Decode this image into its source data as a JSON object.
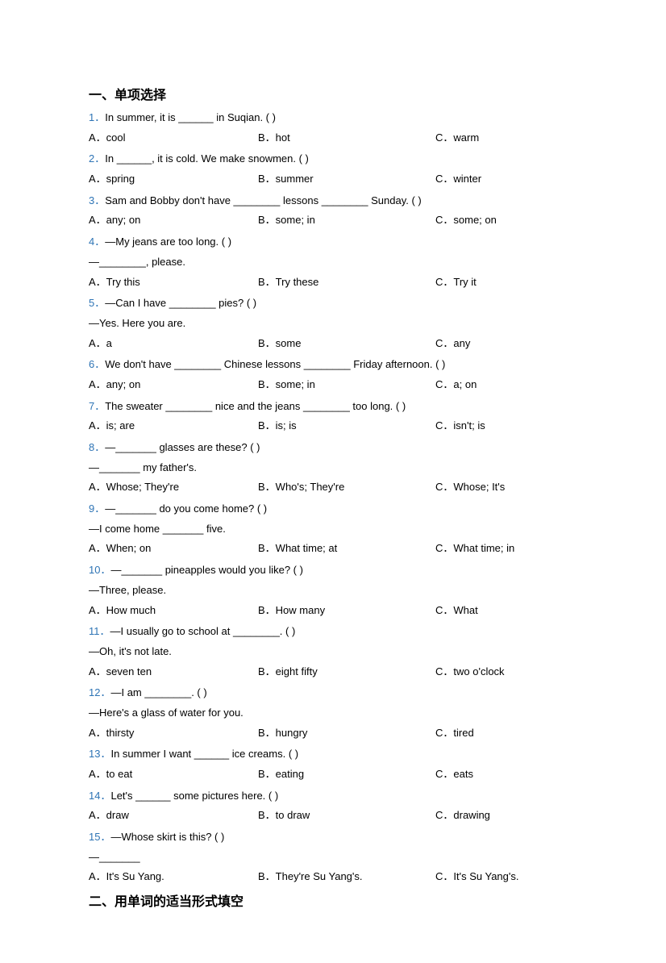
{
  "section1_heading": "一、单项选择",
  "section2_heading": "二、用单词的适当形式填空",
  "colors": {
    "num_color": "#2e74b5",
    "text_color": "#000000",
    "bg_color": "#ffffff"
  },
  "font_sizes": {
    "heading_pt": 12,
    "body_pt": 10
  },
  "questions": [
    {
      "num": "1．",
      "stem": "In summer, it is ______ in Suqian. (    )",
      "opts": {
        "A": "A．cool",
        "B": "B．hot",
        "C": "C．warm"
      }
    },
    {
      "num": "2．",
      "stem": "In ______, it is cold. We make snowmen. (    )",
      "opts": {
        "A": "A．spring",
        "B": "B．summer",
        "C": "C．winter"
      }
    },
    {
      "num": "3．",
      "stem": "Sam and Bobby don't have ________ lessons ________ Sunday. (    )",
      "opts": {
        "A": "A．any; on",
        "B": "B．some; in",
        "C": "C．some; on"
      }
    },
    {
      "num": "4．",
      "stem": "—My jeans are too long. (    )",
      "followups": [
        "—________, please."
      ],
      "opts": {
        "A": "A．Try this",
        "B": "B．Try these",
        "C": "C．Try it"
      }
    },
    {
      "num": "5．",
      "stem": "—Can I have ________ pies? (    )",
      "followups": [
        "—Yes. Here you are."
      ],
      "opts": {
        "A": "A．a",
        "B": "B．some",
        "C": "C．any"
      }
    },
    {
      "num": "6．",
      "stem": "We don't have ________ Chinese lessons ________ Friday afternoon. (    )",
      "opts": {
        "A": "A．any; on",
        "B": "B．some; in",
        "C": "C．a; on"
      }
    },
    {
      "num": "7．",
      "stem": "The sweater ________ nice and the jeans ________ too long. (    )",
      "opts": {
        "A": "A．is; are",
        "B": "B．is; is",
        "C": "C．isn't; is"
      }
    },
    {
      "num": "8．",
      "stem": "—_______ glasses are these? (    )",
      "followups": [
        "—_______ my father's."
      ],
      "opts": {
        "A": "A．Whose; They're",
        "B": "B．Who's; They're",
        "C": "C．Whose; It's"
      }
    },
    {
      "num": "9．",
      "stem": "—_______ do you come home? (    )",
      "followups": [
        "—I come home _______ five."
      ],
      "opts": {
        "A": "A．When; on",
        "B": "B．What time; at",
        "C": "C．What time; in"
      }
    },
    {
      "num": "10．",
      "stem": "—_______ pineapples would you like? (    )",
      "followups": [
        "—Three, please."
      ],
      "opts": {
        "A": "A．How much",
        "B": "B．How many",
        "C": "C．What"
      }
    },
    {
      "num": "11．",
      "stem": "—I usually go to school at ________. (    )",
      "followups": [
        "—Oh, it's not late."
      ],
      "opts": {
        "A": "A．seven ten",
        "B": "B．eight fifty",
        "C": "C．two o'clock"
      }
    },
    {
      "num": "12．",
      "stem": "—I am ________. (    )",
      "followups": [
        "—Here's a glass of water for you."
      ],
      "opts": {
        "A": "A．thirsty",
        "B": "B．hungry",
        "C": "C．tired"
      }
    },
    {
      "num": "13．",
      "stem": "In summer I want ______ ice creams. (    )",
      "opts": {
        "A": "A．to eat",
        "B": "B．eating",
        "C": "C．eats"
      }
    },
    {
      "num": "14．",
      "stem": "Let's ______ some pictures here. (    )",
      "opts": {
        "A": "A．draw",
        "B": "B．to draw",
        "C": "C．drawing"
      }
    },
    {
      "num": "15．",
      "stem": "—Whose skirt is this? (    )",
      "followups": [
        "—_______"
      ],
      "opts": {
        "A": "A．It's Su Yang.",
        "B": "B．They're Su Yang's.",
        "C": "C．It's Su Yang's."
      }
    }
  ]
}
